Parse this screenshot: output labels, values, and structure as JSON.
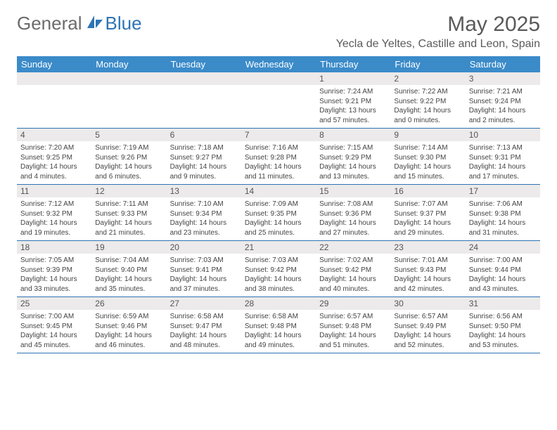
{
  "logo": {
    "general": "General",
    "blue": "Blue"
  },
  "title": "May 2025",
  "location": "Yecla de Yeltes, Castille and Leon, Spain",
  "colors": {
    "header_bg": "#3b8bc9",
    "accent": "#2e74b5",
    "daynum_bg": "#eceaea"
  },
  "weekdays": [
    "Sunday",
    "Monday",
    "Tuesday",
    "Wednesday",
    "Thursday",
    "Friday",
    "Saturday"
  ],
  "weeks": [
    {
      "days": [
        {
          "n": "",
          "sr": "",
          "ss": "",
          "dl": ""
        },
        {
          "n": "",
          "sr": "",
          "ss": "",
          "dl": ""
        },
        {
          "n": "",
          "sr": "",
          "ss": "",
          "dl": ""
        },
        {
          "n": "",
          "sr": "",
          "ss": "",
          "dl": ""
        },
        {
          "n": "1",
          "sr": "Sunrise: 7:24 AM",
          "ss": "Sunset: 9:21 PM",
          "dl": "Daylight: 13 hours and 57 minutes."
        },
        {
          "n": "2",
          "sr": "Sunrise: 7:22 AM",
          "ss": "Sunset: 9:22 PM",
          "dl": "Daylight: 14 hours and 0 minutes."
        },
        {
          "n": "3",
          "sr": "Sunrise: 7:21 AM",
          "ss": "Sunset: 9:24 PM",
          "dl": "Daylight: 14 hours and 2 minutes."
        }
      ]
    },
    {
      "days": [
        {
          "n": "4",
          "sr": "Sunrise: 7:20 AM",
          "ss": "Sunset: 9:25 PM",
          "dl": "Daylight: 14 hours and 4 minutes."
        },
        {
          "n": "5",
          "sr": "Sunrise: 7:19 AM",
          "ss": "Sunset: 9:26 PM",
          "dl": "Daylight: 14 hours and 6 minutes."
        },
        {
          "n": "6",
          "sr": "Sunrise: 7:18 AM",
          "ss": "Sunset: 9:27 PM",
          "dl": "Daylight: 14 hours and 9 minutes."
        },
        {
          "n": "7",
          "sr": "Sunrise: 7:16 AM",
          "ss": "Sunset: 9:28 PM",
          "dl": "Daylight: 14 hours and 11 minutes."
        },
        {
          "n": "8",
          "sr": "Sunrise: 7:15 AM",
          "ss": "Sunset: 9:29 PM",
          "dl": "Daylight: 14 hours and 13 minutes."
        },
        {
          "n": "9",
          "sr": "Sunrise: 7:14 AM",
          "ss": "Sunset: 9:30 PM",
          "dl": "Daylight: 14 hours and 15 minutes."
        },
        {
          "n": "10",
          "sr": "Sunrise: 7:13 AM",
          "ss": "Sunset: 9:31 PM",
          "dl": "Daylight: 14 hours and 17 minutes."
        }
      ]
    },
    {
      "days": [
        {
          "n": "11",
          "sr": "Sunrise: 7:12 AM",
          "ss": "Sunset: 9:32 PM",
          "dl": "Daylight: 14 hours and 19 minutes."
        },
        {
          "n": "12",
          "sr": "Sunrise: 7:11 AM",
          "ss": "Sunset: 9:33 PM",
          "dl": "Daylight: 14 hours and 21 minutes."
        },
        {
          "n": "13",
          "sr": "Sunrise: 7:10 AM",
          "ss": "Sunset: 9:34 PM",
          "dl": "Daylight: 14 hours and 23 minutes."
        },
        {
          "n": "14",
          "sr": "Sunrise: 7:09 AM",
          "ss": "Sunset: 9:35 PM",
          "dl": "Daylight: 14 hours and 25 minutes."
        },
        {
          "n": "15",
          "sr": "Sunrise: 7:08 AM",
          "ss": "Sunset: 9:36 PM",
          "dl": "Daylight: 14 hours and 27 minutes."
        },
        {
          "n": "16",
          "sr": "Sunrise: 7:07 AM",
          "ss": "Sunset: 9:37 PM",
          "dl": "Daylight: 14 hours and 29 minutes."
        },
        {
          "n": "17",
          "sr": "Sunrise: 7:06 AM",
          "ss": "Sunset: 9:38 PM",
          "dl": "Daylight: 14 hours and 31 minutes."
        }
      ]
    },
    {
      "days": [
        {
          "n": "18",
          "sr": "Sunrise: 7:05 AM",
          "ss": "Sunset: 9:39 PM",
          "dl": "Daylight: 14 hours and 33 minutes."
        },
        {
          "n": "19",
          "sr": "Sunrise: 7:04 AM",
          "ss": "Sunset: 9:40 PM",
          "dl": "Daylight: 14 hours and 35 minutes."
        },
        {
          "n": "20",
          "sr": "Sunrise: 7:03 AM",
          "ss": "Sunset: 9:41 PM",
          "dl": "Daylight: 14 hours and 37 minutes."
        },
        {
          "n": "21",
          "sr": "Sunrise: 7:03 AM",
          "ss": "Sunset: 9:42 PM",
          "dl": "Daylight: 14 hours and 38 minutes."
        },
        {
          "n": "22",
          "sr": "Sunrise: 7:02 AM",
          "ss": "Sunset: 9:42 PM",
          "dl": "Daylight: 14 hours and 40 minutes."
        },
        {
          "n": "23",
          "sr": "Sunrise: 7:01 AM",
          "ss": "Sunset: 9:43 PM",
          "dl": "Daylight: 14 hours and 42 minutes."
        },
        {
          "n": "24",
          "sr": "Sunrise: 7:00 AM",
          "ss": "Sunset: 9:44 PM",
          "dl": "Daylight: 14 hours and 43 minutes."
        }
      ]
    },
    {
      "days": [
        {
          "n": "25",
          "sr": "Sunrise: 7:00 AM",
          "ss": "Sunset: 9:45 PM",
          "dl": "Daylight: 14 hours and 45 minutes."
        },
        {
          "n": "26",
          "sr": "Sunrise: 6:59 AM",
          "ss": "Sunset: 9:46 PM",
          "dl": "Daylight: 14 hours and 46 minutes."
        },
        {
          "n": "27",
          "sr": "Sunrise: 6:58 AM",
          "ss": "Sunset: 9:47 PM",
          "dl": "Daylight: 14 hours and 48 minutes."
        },
        {
          "n": "28",
          "sr": "Sunrise: 6:58 AM",
          "ss": "Sunset: 9:48 PM",
          "dl": "Daylight: 14 hours and 49 minutes."
        },
        {
          "n": "29",
          "sr": "Sunrise: 6:57 AM",
          "ss": "Sunset: 9:48 PM",
          "dl": "Daylight: 14 hours and 51 minutes."
        },
        {
          "n": "30",
          "sr": "Sunrise: 6:57 AM",
          "ss": "Sunset: 9:49 PM",
          "dl": "Daylight: 14 hours and 52 minutes."
        },
        {
          "n": "31",
          "sr": "Sunrise: 6:56 AM",
          "ss": "Sunset: 9:50 PM",
          "dl": "Daylight: 14 hours and 53 minutes."
        }
      ]
    }
  ]
}
